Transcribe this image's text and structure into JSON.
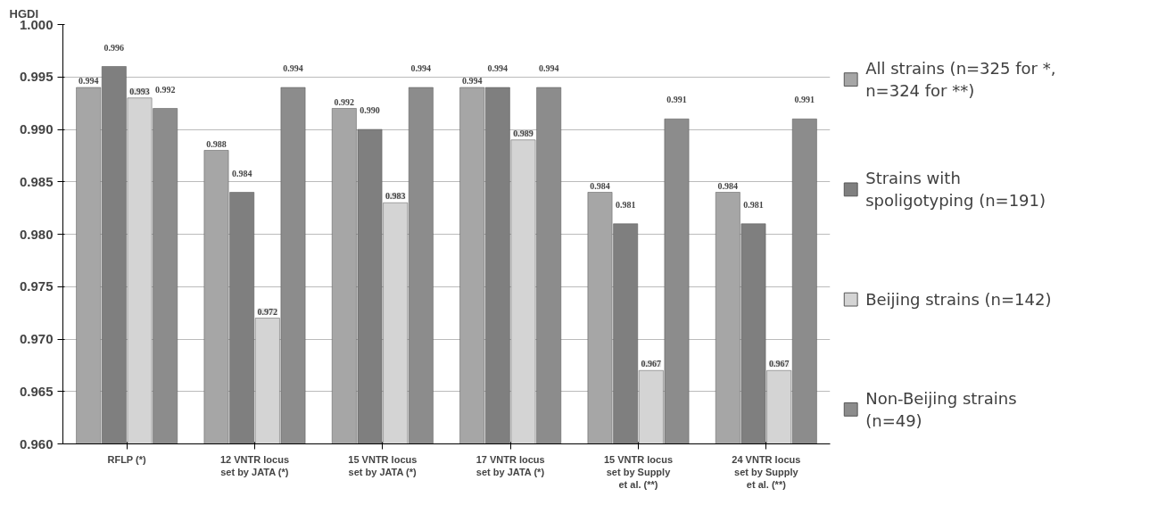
{
  "chart_data": {
    "type": "bar",
    "ylabel": "HGDI",
    "categories": [
      "RFLP (*)",
      "12 VNTR locus\nset by JATA (*)",
      "15 VNTR locus\nset by JATA (*)",
      "17 VNTR locus\nset by JATA (*)",
      "15 VNTR locus\nset by Supply\net al. (**)",
      "24 VNTR locus\nset by Supply\net al. (**)"
    ],
    "series": [
      {
        "name": "All strains (n=325 for *,\nn=324 for **)",
        "color": "#a6a6a6",
        "values": [
          0.994,
          0.988,
          0.992,
          0.994,
          0.984,
          0.984
        ],
        "value_labels": [
          "0.994",
          "0.988",
          "0.992",
          "0.994",
          "0.984",
          "0.984"
        ]
      },
      {
        "name": "Strains with\nspoligotyping (n=191)",
        "color": "#7f7f7f",
        "values": [
          0.996,
          0.984,
          0.99,
          0.994,
          0.981,
          0.981
        ],
        "value_labels": [
          "0.996",
          "0.984",
          "0.990",
          "0.994",
          "0.981",
          "0.981"
        ]
      },
      {
        "name": "Beijing strains (n=142)",
        "color": "#d4d4d4",
        "values": [
          0.993,
          0.972,
          0.983,
          0.989,
          0.967,
          0.967
        ],
        "value_labels": [
          "0.993",
          "0.972",
          "0.983",
          "0.989",
          "0.967",
          "0.967"
        ]
      },
      {
        "name": "Non-Beijing strains\n(n=49)",
        "color": "#8c8c8c",
        "values": [
          0.992,
          0.994,
          0.994,
          0.994,
          0.991,
          0.991
        ],
        "value_labels": [
          "0.992",
          "0.994",
          "0.994",
          "0.994",
          "0.991",
          "0.991"
        ]
      }
    ],
    "ylim": [
      0.96,
      1.0
    ],
    "yticks": [
      {
        "value": 0.96,
        "label": "0.960"
      },
      {
        "value": 0.965,
        "label": "0.965"
      },
      {
        "value": 0.97,
        "label": "0.970"
      },
      {
        "value": 0.975,
        "label": "0.975"
      },
      {
        "value": 0.98,
        "label": "0.980"
      },
      {
        "value": 0.985,
        "label": "0.985"
      },
      {
        "value": 0.99,
        "label": "0.990"
      },
      {
        "value": 0.995,
        "label": "0.995"
      },
      {
        "value": 1.0,
        "label": "1.000"
      }
    ],
    "grid": "y",
    "legend": "right"
  }
}
